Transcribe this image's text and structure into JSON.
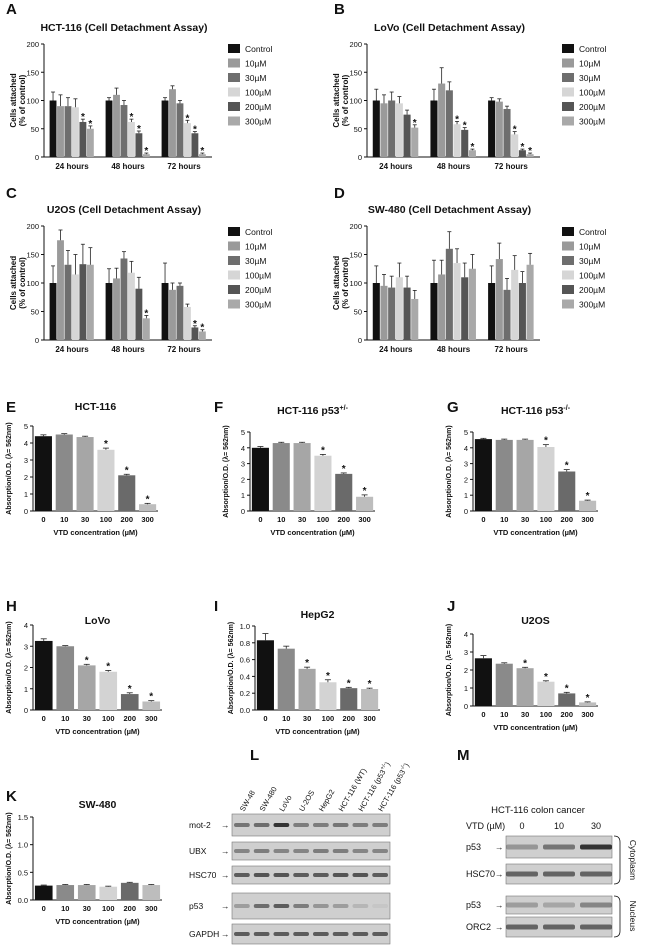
{
  "colors": {
    "detach_series": [
      "#111111",
      "#9a9a9a",
      "#6e6e6e",
      "#d6d6d6",
      "#555555",
      "#a9a9a9"
    ],
    "viability_bars": [
      "#111111",
      "#8a8a8a",
      "#a6a6a6",
      "#d3d3d3",
      "#6a6a6a",
      "#bdbdbd"
    ],
    "blot_bg": "#cfcfcf",
    "blot_band": "#2b2b2b"
  },
  "chart_data": [
    {
      "id": "A",
      "panel_letter": "A",
      "type": "bar",
      "kind": "detachment",
      "title": "HCT-116 (Cell Detachment Assay)",
      "ylabel_lines": [
        "Cells attached",
        "(% of control)"
      ],
      "categories": [
        "24 hours",
        "48 hours",
        "72 hours"
      ],
      "ylim": [
        0,
        200
      ],
      "yticks": [
        "0",
        "50",
        "100",
        "150",
        "200"
      ],
      "legend": [
        "Control",
        "10µM",
        "30µM",
        "100µM",
        "200µM",
        "300µM"
      ],
      "series": [
        {
          "name": "Control",
          "values": [
            100,
            100,
            100
          ],
          "errors": [
            15,
            5,
            5
          ]
        },
        {
          "name": "10µM",
          "values": [
            90,
            110,
            120
          ],
          "errors": [
            20,
            12,
            6
          ]
        },
        {
          "name": "30µM",
          "values": [
            90,
            92,
            95
          ],
          "errors": [
            15,
            8,
            5
          ]
        },
        {
          "name": "100µM",
          "values": [
            88,
            62,
            60
          ],
          "errors": [
            15,
            5,
            5
          ]
        },
        {
          "name": "200µM",
          "values": [
            62,
            42,
            42
          ],
          "errors": [
            5,
            4,
            3
          ]
        },
        {
          "name": "300µM",
          "values": [
            50,
            5,
            5
          ],
          "errors": [
            5,
            2,
            2
          ]
        }
      ],
      "stars": [
        [
          0,
          4
        ],
        [
          0,
          5
        ],
        [
          1,
          3
        ],
        [
          1,
          4
        ],
        [
          1,
          5
        ],
        [
          2,
          3
        ],
        [
          2,
          4
        ],
        [
          2,
          5
        ]
      ],
      "star": "*"
    },
    {
      "id": "B",
      "panel_letter": "B",
      "type": "bar",
      "kind": "detachment",
      "title": "LoVo (Cell Detachment Assay)",
      "ylabel_lines": [
        "Cells attached",
        "(% of control)"
      ],
      "categories": [
        "24 hours",
        "48 hours",
        "72 hours"
      ],
      "ylim": [
        0,
        200
      ],
      "yticks": [
        "0",
        "50",
        "100",
        "150",
        "200"
      ],
      "legend": [
        "Control",
        "10µM",
        "30µM",
        "100µM",
        "200µM",
        "300µM"
      ],
      "series": [
        {
          "name": "Control",
          "values": [
            100,
            100,
            100
          ],
          "errors": [
            20,
            20,
            5
          ]
        },
        {
          "name": "10µM",
          "values": [
            95,
            130,
            98
          ],
          "errors": [
            15,
            28,
            5
          ]
        },
        {
          "name": "30µM",
          "values": [
            100,
            118,
            85
          ],
          "errors": [
            15,
            15,
            5
          ]
        },
        {
          "name": "100µM",
          "values": [
            95,
            58,
            40
          ],
          "errors": [
            12,
            5,
            5
          ]
        },
        {
          "name": "200µM",
          "values": [
            75,
            48,
            12
          ],
          "errors": [
            8,
            4,
            2
          ]
        },
        {
          "name": "300µM",
          "values": [
            52,
            12,
            5
          ],
          "errors": [
            5,
            2,
            2
          ]
        }
      ],
      "stars": [
        [
          0,
          5
        ],
        [
          1,
          3
        ],
        [
          1,
          4
        ],
        [
          1,
          5
        ],
        [
          2,
          3
        ],
        [
          2,
          4
        ],
        [
          2,
          5
        ]
      ],
      "star": "*"
    },
    {
      "id": "C",
      "panel_letter": "C",
      "type": "bar",
      "kind": "detachment",
      "title": "U2OS (Cell Detachment Assay)",
      "ylabel_lines": [
        "Cells attached",
        "(% of control)"
      ],
      "categories": [
        "24 hours",
        "48 hours",
        "72 hours"
      ],
      "ylim": [
        0,
        200
      ],
      "yticks": [
        "0",
        "50",
        "100",
        "150",
        "200"
      ],
      "legend": [
        "Control",
        "10µM",
        "30µM",
        "100µM",
        "200µM",
        "300µM"
      ],
      "series": [
        {
          "name": "Control",
          "values": [
            100,
            100,
            100
          ],
          "errors": [
            30,
            25,
            35
          ]
        },
        {
          "name": "10µM",
          "values": [
            175,
            108,
            88
          ],
          "errors": [
            18,
            18,
            12
          ]
        },
        {
          "name": "30µM",
          "values": [
            132,
            143,
            95
          ],
          "errors": [
            25,
            12,
            5
          ]
        },
        {
          "name": "100µM",
          "values": [
            115,
            118,
            58
          ],
          "errors": [
            35,
            20,
            5
          ]
        },
        {
          "name": "200µM",
          "values": [
            133,
            90,
            22
          ],
          "errors": [
            35,
            20,
            3
          ]
        },
        {
          "name": "300µM",
          "values": [
            132,
            38,
            15
          ],
          "errors": [
            30,
            5,
            3
          ]
        }
      ],
      "stars": [
        [
          1,
          5
        ],
        [
          2,
          4
        ],
        [
          2,
          5
        ]
      ],
      "star": "*"
    },
    {
      "id": "D",
      "panel_letter": "D",
      "type": "bar",
      "kind": "detachment",
      "title": "SW-480 (Cell Detachment Assay)",
      "ylabel_lines": [
        "Cells attached",
        "(% of control)"
      ],
      "categories": [
        "24 hours",
        "48 hours",
        "72 hours"
      ],
      "ylim": [
        0,
        200
      ],
      "yticks": [
        "0",
        "50",
        "100",
        "150",
        "200"
      ],
      "legend": [
        "Control",
        "10µM",
        "30µM",
        "100µM",
        "200µM",
        "300µM"
      ],
      "series": [
        {
          "name": "Control",
          "values": [
            100,
            100,
            100
          ],
          "errors": [
            30,
            40,
            30
          ]
        },
        {
          "name": "10µM",
          "values": [
            95,
            115,
            142
          ],
          "errors": [
            20,
            25,
            28
          ]
        },
        {
          "name": "30µM",
          "values": [
            92,
            160,
            88
          ],
          "errors": [
            20,
            30,
            20
          ]
        },
        {
          "name": "100µM",
          "values": [
            110,
            135,
            123
          ],
          "errors": [
            25,
            25,
            25
          ]
        },
        {
          "name": "200µM",
          "values": [
            92,
            110,
            100
          ],
          "errors": [
            20,
            25,
            20
          ]
        },
        {
          "name": "300µM",
          "values": [
            72,
            125,
            132
          ],
          "errors": [
            15,
            25,
            20
          ]
        }
      ],
      "stars": [],
      "star": "*"
    },
    {
      "id": "E",
      "panel_letter": "E",
      "type": "bar",
      "kind": "viability",
      "title": "HCT-116",
      "ylabel": "Absorption/O.D. (λ= 562nm)",
      "xlabel": "VTD concentration (µM)",
      "categories": [
        "0",
        "10",
        "30",
        "100",
        "200",
        "300"
      ],
      "ylim": [
        0,
        5
      ],
      "yticks": [
        "0",
        "1",
        "2",
        "3",
        "4",
        "5"
      ],
      "values": [
        4.4,
        4.5,
        4.35,
        3.6,
        2.1,
        0.4
      ],
      "errors": [
        0.08,
        0.05,
        0.05,
        0.1,
        0.06,
        0.05
      ],
      "stars": [
        3,
        4,
        5
      ],
      "star": "*"
    },
    {
      "id": "F",
      "panel_letter": "F",
      "type": "bar",
      "kind": "viability",
      "title": "HCT-116 p53",
      "title_sup": "+/-",
      "ylabel": "Absorption/O.D. (λ= 562nm)",
      "xlabel": "VTD concentration (µM)",
      "categories": [
        "0",
        "10",
        "30",
        "100",
        "200",
        "300"
      ],
      "ylim": [
        0,
        5
      ],
      "yticks": [
        "0",
        "1",
        "2",
        "3",
        "4",
        "5"
      ],
      "values": [
        4.0,
        4.3,
        4.3,
        3.5,
        2.35,
        0.9
      ],
      "errors": [
        0.08,
        0.05,
        0.05,
        0.08,
        0.06,
        0.12
      ],
      "stars": [
        3,
        4,
        5
      ],
      "star": "*"
    },
    {
      "id": "G",
      "panel_letter": "G",
      "type": "bar",
      "kind": "viability",
      "title": "HCT-116 p53",
      "title_sup": "-/-",
      "ylabel": "Absorption/O.D. (λ= 562nm)",
      "xlabel": "VTD concentration (µM)",
      "categories": [
        "0",
        "10",
        "30",
        "100",
        "200",
        "300"
      ],
      "ylim": [
        0,
        5
      ],
      "yticks": [
        "0",
        "1",
        "2",
        "3",
        "4",
        "5"
      ],
      "values": [
        4.55,
        4.5,
        4.5,
        4.05,
        2.5,
        0.65
      ],
      "errors": [
        0.05,
        0.05,
        0.05,
        0.15,
        0.12,
        0.04
      ],
      "stars": [
        3,
        4,
        5
      ],
      "star": "*"
    },
    {
      "id": "H",
      "panel_letter": "H",
      "type": "bar",
      "kind": "viability",
      "title": "LoVo",
      "ylabel": "Absorption/O.D. (λ= 562nm)",
      "xlabel": "VTD concentration (µM)",
      "categories": [
        "0",
        "10",
        "30",
        "100",
        "200",
        "300"
      ],
      "ylim": [
        0,
        4
      ],
      "yticks": [
        "0",
        "1",
        "2",
        "3",
        "4"
      ],
      "values": [
        3.25,
        3.0,
        2.1,
        1.8,
        0.75,
        0.4
      ],
      "errors": [
        0.1,
        0.03,
        0.05,
        0.06,
        0.06,
        0.04
      ],
      "stars": [
        2,
        3,
        4,
        5
      ],
      "star": "*"
    },
    {
      "id": "I",
      "panel_letter": "I",
      "type": "bar",
      "kind": "viability",
      "title": "HepG2",
      "ylabel": "Absorption/O.D. (λ= 562nm)",
      "xlabel": "VTD concentration (µM)",
      "categories": [
        "0",
        "10",
        "30",
        "100",
        "200",
        "300"
      ],
      "ylim": [
        0,
        1.0
      ],
      "yticks": [
        "0.0",
        "0.2",
        "0.4",
        "0.6",
        "0.8",
        "1.0"
      ],
      "values": [
        0.83,
        0.73,
        0.49,
        0.33,
        0.26,
        0.25
      ],
      "errors": [
        0.08,
        0.03,
        0.02,
        0.03,
        0.01,
        0.01
      ],
      "stars": [
        2,
        3,
        4,
        5
      ],
      "star": "*"
    },
    {
      "id": "J",
      "panel_letter": "J",
      "type": "bar",
      "kind": "viability",
      "title": "U2OS",
      "ylabel": "Absorption/O.D. (λ= 562nm)",
      "xlabel": "VTD concentration (µM)",
      "categories": [
        "0",
        "10",
        "30",
        "100",
        "200",
        "300"
      ],
      "ylim": [
        0,
        4
      ],
      "yticks": [
        "0",
        "1",
        "2",
        "3",
        "4"
      ],
      "values": [
        2.65,
        2.35,
        2.1,
        1.35,
        0.7,
        0.2
      ],
      "errors": [
        0.15,
        0.05,
        0.05,
        0.05,
        0.06,
        0.03
      ],
      "stars": [
        2,
        3,
        4,
        5
      ],
      "star": "*"
    },
    {
      "id": "K",
      "panel_letter": "K",
      "type": "bar",
      "kind": "viability",
      "title": "SW-480",
      "ylabel": "Absorption/O.D. (λ= 562nm)",
      "xlabel": "VTD concentration (µM)",
      "categories": [
        "0",
        "10",
        "30",
        "100",
        "200",
        "300"
      ],
      "ylim": [
        0,
        1.5
      ],
      "yticks": [
        "0.0",
        "0.5",
        "1.0",
        "1.5"
      ],
      "values": [
        0.26,
        0.27,
        0.27,
        0.24,
        0.31,
        0.27
      ],
      "errors": [
        0.01,
        0.01,
        0.01,
        0.01,
        0.01,
        0.01
      ],
      "stars": [],
      "star": "*"
    }
  ],
  "blot_L": {
    "letter": "L",
    "lanes": [
      "SW-48",
      "SW-480",
      "LoVo",
      "U-2OS",
      "HepG2",
      "HCT-116 (WT)",
      "HCT-116 (p53",
      "HCT-116 (p53"
    ],
    "lane_sups": [
      "",
      "",
      "",
      "",
      "",
      "",
      "+/-",
      "-/-"
    ],
    "lane_suffix": ")",
    "rows": [
      "mot-2",
      "UBX",
      "HSC70",
      "p53",
      "GAPDH"
    ],
    "arrow": "→"
  },
  "blot_M": {
    "letter": "M",
    "title": "HCT-116 colon cancer",
    "vtd_label": "VTD (µM)",
    "doses": [
      "0",
      "10",
      "30"
    ],
    "rows": [
      "p53",
      "HSC70",
      "p53",
      "ORC2"
    ],
    "fractions": [
      "Cytoplasm",
      "Nucleus"
    ],
    "arrow": "→"
  }
}
